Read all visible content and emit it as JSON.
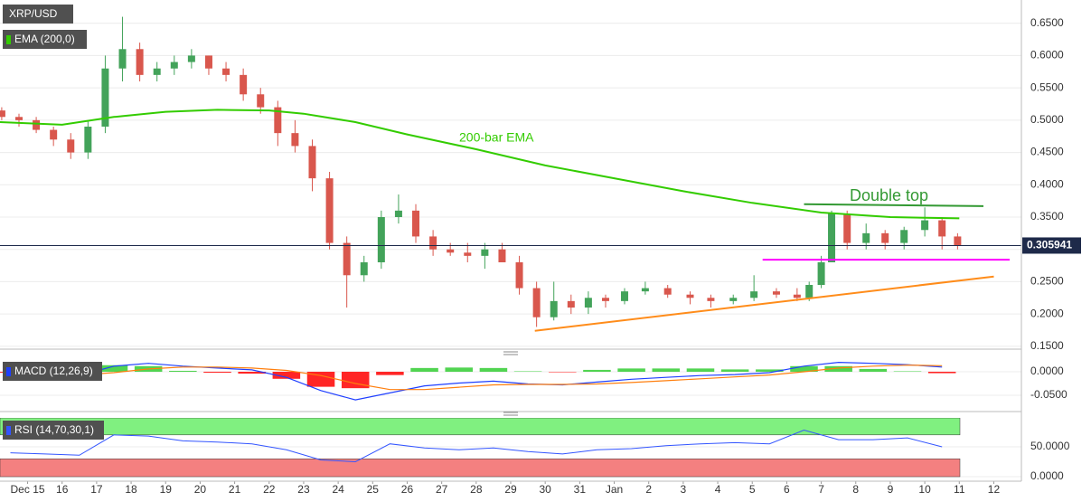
{
  "chart_data": [
    {
      "type": "candlestick",
      "title": "XRP/USD",
      "xlim": [
        14.2,
        43.8
      ],
      "xticks": [
        {
          "value": 15,
          "label": "Dec 15"
        },
        16,
        17,
        18,
        19,
        20,
        21,
        22,
        23,
        24,
        25,
        26,
        27,
        28,
        29,
        30,
        31,
        {
          "value": 32,
          "label": "Jan"
        },
        {
          "value": 33,
          "label": "2"
        },
        {
          "value": 34,
          "label": "3"
        },
        {
          "value": 35,
          "label": "4"
        },
        {
          "value": 36,
          "label": "5"
        },
        {
          "value": 37,
          "label": "6"
        },
        {
          "value": 38,
          "label": "7"
        },
        {
          "value": 39,
          "label": "8"
        },
        {
          "value": 40,
          "label": "9"
        },
        {
          "value": 41,
          "label": "10"
        },
        {
          "value": 42,
          "label": "11"
        },
        {
          "value": 43,
          "label": "12"
        }
      ],
      "ylim": [
        0.147,
        0.686
      ],
      "yticks": [
        {
          "value": 0.15,
          "label": "0.1500"
        },
        {
          "value": 0.2,
          "label": "0.2000"
        },
        {
          "value": 0.25,
          "label": "0.2500"
        },
        {
          "value": 0.3,
          "label": "0.3000"
        },
        {
          "value": 0.35,
          "label": "0.3500"
        },
        {
          "value": 0.4,
          "label": "0.4000"
        },
        {
          "value": 0.45,
          "label": "0.4500"
        },
        {
          "value": 0.5,
          "label": "0.5000"
        },
        {
          "value": 0.55,
          "label": "0.5500"
        },
        {
          "value": 0.6,
          "label": "0.6000"
        },
        {
          "value": 0.65,
          "label": "0.6500"
        }
      ],
      "grid": true,
      "up_color": "#43a35a",
      "down_color": "#d9574d",
      "x": [
        14.25,
        14.75,
        15.25,
        15.75,
        16.25,
        16.75,
        17.25,
        17.75,
        18.25,
        18.75,
        19.25,
        19.75,
        20.25,
        20.75,
        21.25,
        21.75,
        22.25,
        22.75,
        23.25,
        23.75,
        24.25,
        24.75,
        25.25,
        25.75,
        26.25,
        26.75,
        27.25,
        27.75,
        28.25,
        28.75,
        29.25,
        29.75,
        30.25,
        30.75,
        31.25,
        31.75,
        32.3,
        32.9,
        33.55,
        34.2,
        34.8,
        35.45,
        36.05,
        36.7,
        37.3,
        37.65,
        38.0,
        38.3,
        38.75,
        39.3,
        39.85,
        40.4,
        41.0,
        41.5,
        41.95
      ],
      "open": [
        0.515,
        0.505,
        0.5,
        0.485,
        0.47,
        0.45,
        0.49,
        0.58,
        0.61,
        0.57,
        0.58,
        0.59,
        0.6,
        0.58,
        0.57,
        0.54,
        0.52,
        0.48,
        0.46,
        0.41,
        0.31,
        0.26,
        0.28,
        0.35,
        0.36,
        0.32,
        0.3,
        0.295,
        0.29,
        0.3,
        0.28,
        0.24,
        0.195,
        0.22,
        0.21,
        0.225,
        0.22,
        0.235,
        0.24,
        0.23,
        0.225,
        0.22,
        0.225,
        0.235,
        0.23,
        0.225,
        0.245,
        0.28,
        0.355,
        0.31,
        0.325,
        0.31,
        0.33,
        0.345,
        0.32
      ],
      "high": [
        0.52,
        0.51,
        0.505,
        0.49,
        0.48,
        0.5,
        0.6,
        0.66,
        0.62,
        0.59,
        0.6,
        0.61,
        0.6,
        0.59,
        0.58,
        0.55,
        0.53,
        0.5,
        0.47,
        0.42,
        0.32,
        0.29,
        0.36,
        0.385,
        0.37,
        0.33,
        0.31,
        0.31,
        0.31,
        0.31,
        0.29,
        0.25,
        0.25,
        0.23,
        0.235,
        0.23,
        0.24,
        0.25,
        0.245,
        0.235,
        0.23,
        0.23,
        0.26,
        0.24,
        0.24,
        0.25,
        0.29,
        0.36,
        0.36,
        0.34,
        0.33,
        0.335,
        0.365,
        0.35,
        0.325
      ],
      "low": [
        0.5,
        0.49,
        0.48,
        0.46,
        0.44,
        0.44,
        0.48,
        0.56,
        0.56,
        0.56,
        0.57,
        0.58,
        0.57,
        0.56,
        0.53,
        0.51,
        0.46,
        0.45,
        0.39,
        0.3,
        0.21,
        0.25,
        0.27,
        0.34,
        0.31,
        0.29,
        0.29,
        0.28,
        0.27,
        0.28,
        0.23,
        0.18,
        0.19,
        0.2,
        0.2,
        0.21,
        0.215,
        0.23,
        0.225,
        0.215,
        0.21,
        0.215,
        0.22,
        0.225,
        0.22,
        0.22,
        0.24,
        0.28,
        0.3,
        0.3,
        0.3,
        0.3,
        0.32,
        0.3,
        0.3
      ],
      "close": [
        0.505,
        0.5,
        0.485,
        0.47,
        0.45,
        0.49,
        0.58,
        0.61,
        0.57,
        0.58,
        0.59,
        0.6,
        0.58,
        0.57,
        0.54,
        0.52,
        0.48,
        0.46,
        0.41,
        0.31,
        0.26,
        0.28,
        0.35,
        0.36,
        0.32,
        0.3,
        0.295,
        0.29,
        0.3,
        0.28,
        0.24,
        0.195,
        0.22,
        0.21,
        0.225,
        0.22,
        0.235,
        0.24,
        0.23,
        0.225,
        0.22,
        0.225,
        0.235,
        0.23,
        0.225,
        0.245,
        0.28,
        0.355,
        0.31,
        0.325,
        0.31,
        0.33,
        0.345,
        0.32,
        0.306
      ],
      "last_price": 0.305941,
      "ema": {
        "name": "EMA (200,0)",
        "color": "#33cc00",
        "x": [
          14.2,
          16,
          17.5,
          19,
          20.5,
          22,
          23,
          24.5,
          26,
          28,
          30,
          32,
          34,
          36,
          38,
          40,
          42
        ],
        "values": [
          0.497,
          0.493,
          0.505,
          0.513,
          0.516,
          0.515,
          0.51,
          0.497,
          0.478,
          0.455,
          0.43,
          0.41,
          0.39,
          0.372,
          0.357,
          0.35,
          0.348
        ]
      },
      "trendlines": [
        {
          "color": "#ff8c1a",
          "x": [
            29.7,
            43.0
          ],
          "values": [
            0.174,
            0.258
          ]
        },
        {
          "color": "#ff00ff",
          "x": [
            36.3,
            43.46
          ],
          "values": [
            0.284,
            0.284
          ]
        },
        {
          "color": "#339933",
          "x": [
            37.5,
            42.7
          ],
          "values": [
            0.37,
            0.367
          ]
        }
      ],
      "annotations": [
        "200-bar EMA",
        "Double top"
      ]
    },
    {
      "type": "macd",
      "title": "MACD (12,26,9)",
      "ylim": [
        -0.079,
        0.027
      ],
      "yticks": [
        {
          "value": 0,
          "label": "0.0000"
        },
        {
          "value": -0.05,
          "label": "-0.0500"
        }
      ],
      "x": [
        14.5,
        15.5,
        16.5,
        17.5,
        18.5,
        19.5,
        20.5,
        21.5,
        22.5,
        23.5,
        24.5,
        25.5,
        26.5,
        27.5,
        28.5,
        29.5,
        30.5,
        31.5,
        32.5,
        33.5,
        34.5,
        35.5,
        36.5,
        37.5,
        38.5,
        39.5,
        40.5,
        41.5
      ],
      "series": [
        {
          "name": "MACD",
          "color": "#1f3fff",
          "values": [
            -0.004,
            -0.01,
            -0.008,
            0.012,
            0.018,
            0.012,
            0.008,
            0.004,
            -0.012,
            -0.04,
            -0.06,
            -0.045,
            -0.03,
            -0.024,
            -0.02,
            -0.026,
            -0.028,
            -0.022,
            -0.016,
            -0.012,
            -0.008,
            -0.006,
            -0.002,
            0.012,
            0.02,
            0.018,
            0.015,
            0.01
          ]
        },
        {
          "name": "Signal",
          "color": "#ff7f0e",
          "values": [
            -0.002,
            -0.005,
            -0.007,
            -0.002,
            0.006,
            0.01,
            0.01,
            0.008,
            0.003,
            -0.008,
            -0.025,
            -0.038,
            -0.038,
            -0.033,
            -0.028,
            -0.027,
            -0.027,
            -0.026,
            -0.023,
            -0.019,
            -0.015,
            -0.011,
            -0.007,
            0.0,
            0.008,
            0.012,
            0.014,
            0.013
          ]
        }
      ],
      "histogram": {
        "up_color": "#33cc33",
        "down_color": "#ff0000",
        "values": [
          -0.002,
          -0.005,
          -0.001,
          0.014,
          0.012,
          0.002,
          -0.002,
          -0.004,
          -0.015,
          -0.032,
          -0.035,
          -0.007,
          0.008,
          0.009,
          0.008,
          0.001,
          -0.001,
          0.004,
          0.007,
          0.007,
          0.007,
          0.005,
          0.005,
          0.012,
          0.012,
          0.006,
          0.001,
          -0.003
        ]
      }
    },
    {
      "type": "rsi",
      "title": "RSI (14,70,30,1)",
      "ylim": [
        -4.5,
        98.5
      ],
      "yticks": [
        {
          "value": 50,
          "label": "50.0000"
        },
        {
          "value": 0,
          "label": "0.0000"
        }
      ],
      "bands": [
        {
          "from": 70,
          "to": 98.5,
          "color": "#80f080"
        },
        {
          "from": 0,
          "to": 30,
          "color": "#f48080"
        }
      ],
      "x": [
        14.5,
        15.5,
        16.5,
        17.5,
        18.5,
        19.5,
        20.5,
        21.5,
        22.5,
        23.5,
        24.5,
        25.5,
        26.5,
        27.5,
        28.5,
        29.5,
        30.5,
        31.5,
        32.5,
        33.5,
        34.5,
        35.5,
        36.5,
        37.5,
        38.5,
        39.5,
        40.5,
        41.5
      ],
      "series": [
        {
          "name": "RSI",
          "color": "#3355ff",
          "values": [
            40,
            38,
            36,
            70,
            68,
            60,
            58,
            55,
            45,
            28,
            25,
            55,
            48,
            45,
            48,
            42,
            38,
            45,
            47,
            52,
            55,
            57,
            55,
            78,
            62,
            62,
            65,
            50
          ]
        }
      ]
    }
  ]
}
